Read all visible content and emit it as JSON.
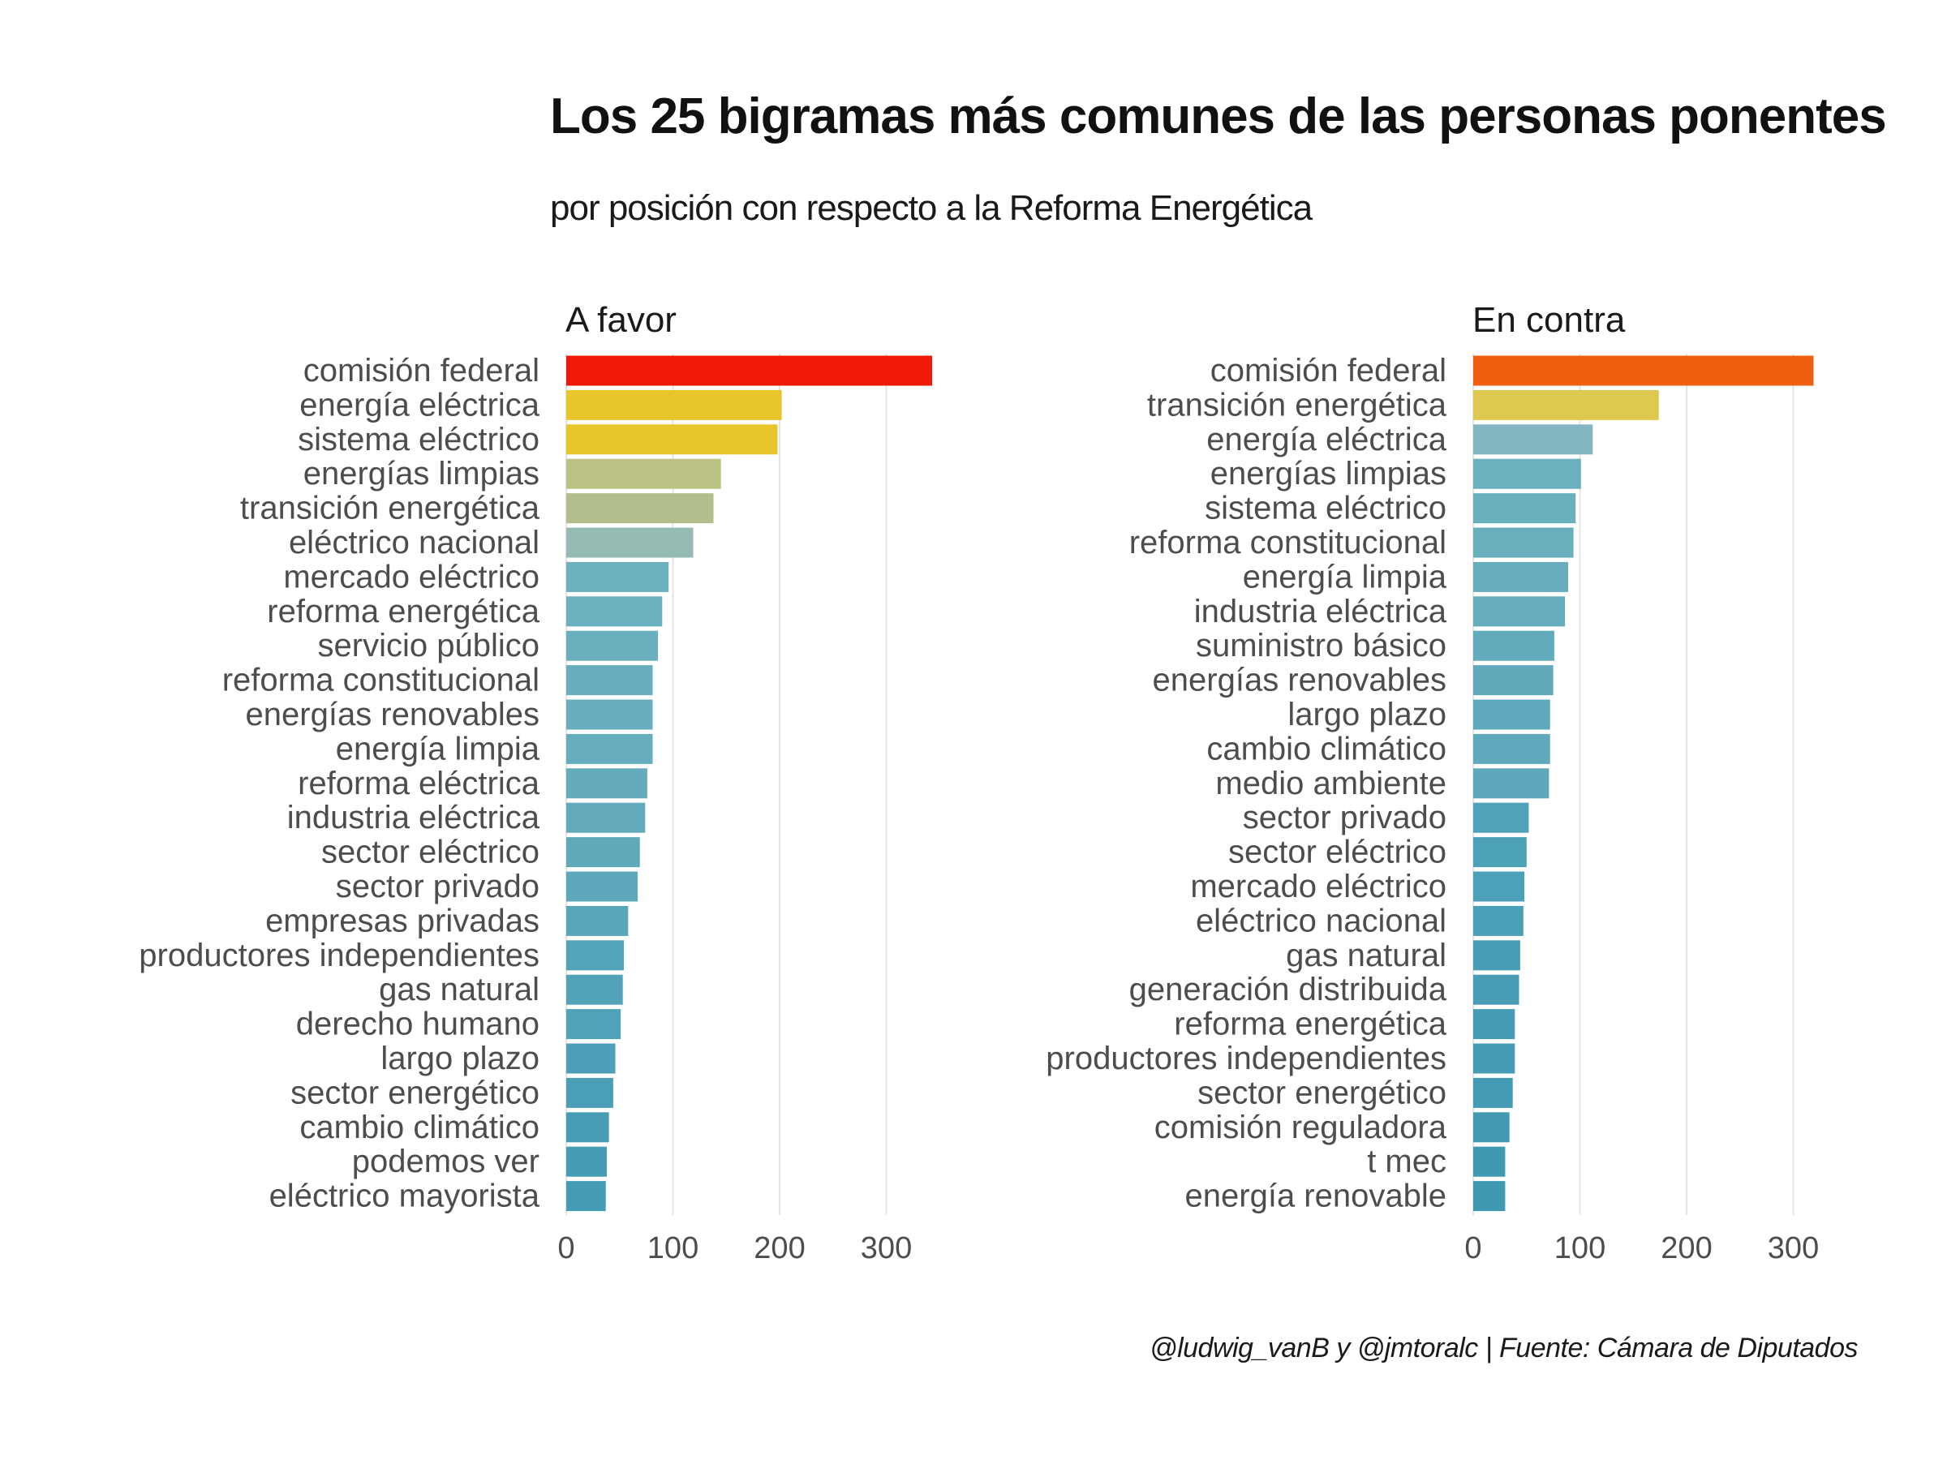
{
  "title": "Los 25 bigramas más comunes de las personas ponentes",
  "subtitle": "por posición con respecto a la Reforma Energética",
  "caption": "@ludwig_vanB y @jmtoralc | Fuente: Cámara de Diputados",
  "chart_data": [
    {
      "type": "bar",
      "orientation": "horizontal",
      "panel_title": "A favor",
      "xlim": [
        0,
        350
      ],
      "x_ticks": [
        0,
        100,
        200,
        300
      ],
      "grid": true,
      "categories": [
        "comisión federal",
        "energía eléctrica",
        "sistema eléctrico",
        "energías limpias",
        "transición energética",
        "eléctrico nacional",
        "mercado eléctrico",
        "reforma energética",
        "servicio público",
        "reforma constitucional",
        "energías renovables",
        "energía limpia",
        "reforma eléctrica",
        "industria eléctrica",
        "sector eléctrico",
        "sector privado",
        "empresas privadas",
        "productores independientes",
        "gas natural",
        "derecho humano",
        "largo plazo",
        "sector energético",
        "cambio climático",
        "podemos ver",
        "eléctrico mayorista"
      ],
      "values": [
        343,
        202,
        198,
        145,
        138,
        119,
        96,
        90,
        86,
        81,
        81,
        81,
        76,
        74,
        69,
        67,
        58,
        54,
        53,
        51,
        46,
        44,
        40,
        38,
        37
      ],
      "colors": [
        "#f0190a",
        "#e8c52a",
        "#e8c52a",
        "#bcc184",
        "#b2bf8c",
        "#93bbb4",
        "#6cb1c0",
        "#6ab0bf",
        "#69afbe",
        "#67adbe",
        "#67adbe",
        "#66adbe",
        "#64abbc",
        "#62aabc",
        "#60a9bb",
        "#5ea8bb",
        "#58a6ba",
        "#54a4b9",
        "#52a3b8",
        "#50a2b8",
        "#4c9fb7",
        "#4a9eb6",
        "#479db5",
        "#459cb5",
        "#439bb4"
      ]
    },
    {
      "type": "bar",
      "orientation": "horizontal",
      "panel_title": "En contra",
      "xlim": [
        0,
        350
      ],
      "x_ticks": [
        0,
        100,
        200,
        300
      ],
      "grid": true,
      "categories": [
        "comisión federal",
        "transición energética",
        "energía eléctrica",
        "energías limpias",
        "sistema eléctrico",
        "reforma constitucional",
        "energía limpia",
        "industria eléctrica",
        "suministro básico",
        "energías renovables",
        "largo plazo",
        "cambio climático",
        "medio ambiente",
        "sector privado",
        "sector eléctrico",
        "mercado eléctrico",
        "eléctrico nacional",
        "gas natural",
        "generación distribuida",
        "reforma energética",
        "productores independientes",
        "sector energético",
        "comisión reguladora",
        "t mec",
        "energía renovable"
      ],
      "values": [
        319,
        174,
        112,
        101,
        96,
        94,
        89,
        86,
        76,
        75,
        72,
        72,
        71,
        52,
        50,
        48,
        47,
        44,
        43,
        39,
        39,
        37,
        34,
        30,
        30
      ],
      "colors": [
        "#ef5d0e",
        "#dfc84f",
        "#82b6c0",
        "#6ab1c0",
        "#69b0bf",
        "#68afbe",
        "#66aebe",
        "#65adbd",
        "#61abbd",
        "#60aabc",
        "#5ea9bc",
        "#5ea9bc",
        "#5da8bb",
        "#4fa2b8",
        "#4da1b7",
        "#4ca0b7",
        "#4b9fb6",
        "#499eb6",
        "#489db5",
        "#459cb4",
        "#459cb4",
        "#449bb4",
        "#429ab3",
        "#3f99b2",
        "#3f99b2"
      ]
    }
  ]
}
